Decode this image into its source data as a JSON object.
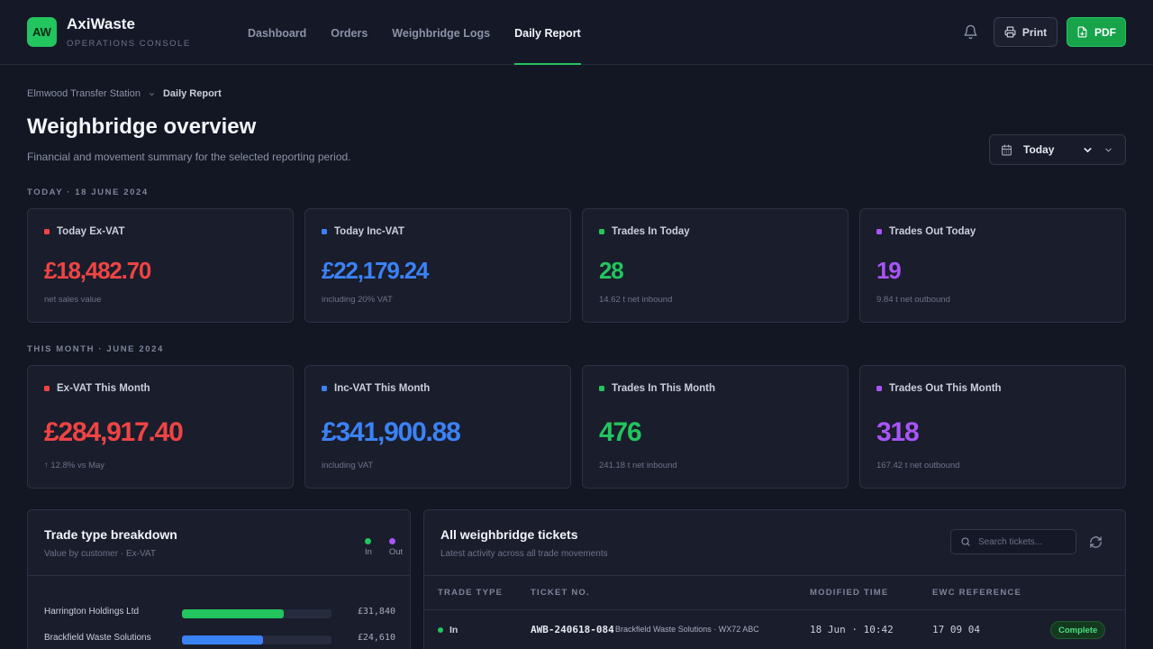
{
  "app": {
    "logo_initials": "AW",
    "name": "AxiWaste",
    "subtitle": "OPERATIONS CONSOLE"
  },
  "nav": {
    "items": [
      {
        "label": "Dashboard",
        "active": false
      },
      {
        "label": "Orders",
        "active": false
      },
      {
        "label": "Weighbridge Logs",
        "active": false
      },
      {
        "label": "Daily Report",
        "active": true
      }
    ]
  },
  "toolbar": {
    "print_label": "Print",
    "pdf_label": "PDF",
    "icons": [
      "bell-icon",
      "printer-icon",
      "pdf-file-icon"
    ]
  },
  "breadcrumb": {
    "parent": "Elmwood Transfer Station",
    "current": "Daily Report"
  },
  "header": {
    "title": "Weighbridge overview",
    "subtitle": "Financial and movement summary for the selected reporting period.",
    "period_select": "Today"
  },
  "colors": {
    "accent": "#22c55e",
    "ex_vat": "#ef4444",
    "inc_vat": "#3b82f6",
    "trades_in": "#22c55e",
    "trades_out": "#a855f7"
  },
  "today": {
    "section_label": "TODAY · 18 JUNE 2024",
    "cards": [
      {
        "title": "Today Ex-VAT",
        "value": "£18,482.70",
        "note": "net sales value",
        "color": "#ef4444"
      },
      {
        "title": "Today Inc-VAT",
        "value": "£22,179.24",
        "note": "including 20% VAT",
        "color": "#3b82f6"
      },
      {
        "title": "Trades In Today",
        "value": "28",
        "note": "14.62 t net inbound",
        "color": "#22c55e"
      },
      {
        "title": "Trades Out Today",
        "value": "19",
        "note": "9.84 t net outbound",
        "color": "#a855f7"
      }
    ]
  },
  "month": {
    "section_label": "THIS MONTH · JUNE 2024",
    "cards": [
      {
        "title": "Ex-VAT This Month",
        "value": "£284,917.40",
        "note": "↑ 12.8% vs May",
        "color": "#ef4444"
      },
      {
        "title": "Inc-VAT This Month",
        "value": "£341,900.88",
        "note": "including VAT",
        "color": "#3b82f6"
      },
      {
        "title": "Trades In This Month",
        "value": "476",
        "note": "241.18 t net inbound",
        "color": "#22c55e"
      },
      {
        "title": "Trades Out This Month",
        "value": "318",
        "note": "167.42 t net outbound",
        "color": "#a855f7"
      }
    ]
  },
  "breakdown": {
    "title": "Trade type breakdown",
    "subtitle": "Value by customer · Ex-VAT",
    "legend_in": "In",
    "legend_out": "Out",
    "rows": [
      {
        "name": "Harrington Holdings Ltd",
        "value": "£31,840",
        "share": 0.68,
        "color": "#22c55e"
      },
      {
        "name": "Brackfield Waste Solutions",
        "value": "£24,610",
        "share": 0.54,
        "color": "#3b82f6"
      }
    ]
  },
  "tickets": {
    "title": "All weighbridge tickets",
    "subtitle": "Latest activity across all trade movements",
    "search_placeholder": "Search tickets...",
    "columns": [
      "TRADE TYPE",
      "TICKET NO.",
      "MODIFIED TIME",
      "EWC REFERENCE"
    ],
    "rows": [
      {
        "trade": "In",
        "ticket": "AWB-240618-084",
        "customer": "Brackfield Waste Solutions · WX72 ABC",
        "time": "18 Jun · 10:42",
        "ewc": "17 09 04",
        "status": "Complete"
      }
    ]
  }
}
